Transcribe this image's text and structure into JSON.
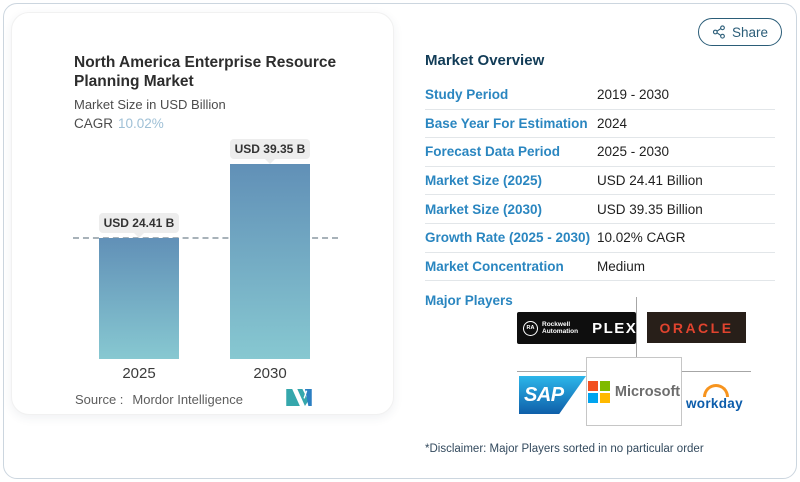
{
  "share_button": {
    "label": "Share",
    "icon": "share-nodes-icon"
  },
  "chart_panel": {
    "title_line1": "North America Enterprise Resource",
    "title_line2": "Planning Market",
    "subtitle": "Market Size in USD Billion",
    "cagr_label": "CAGR",
    "cagr_value": "10.02%",
    "source_label": "Source :",
    "source_name": "Mordor Intelligence"
  },
  "chart_data": {
    "type": "bar",
    "title": "North America Enterprise Resource Planning Market",
    "ylabel": "Market Size in USD Billion",
    "unit": "USD Billion",
    "cagr_pct": "10.02%",
    "categories": [
      "2025",
      "2030"
    ],
    "values": [
      24.41,
      39.35
    ],
    "value_labels": [
      "USD 24.41 B",
      "USD 39.35 B"
    ],
    "ylim": [
      0,
      40
    ],
    "reference_line_value": 24.41,
    "grid": "off",
    "bar_gradient": [
      "#6190b7",
      "#87c8d1"
    ]
  },
  "overview": {
    "heading": "Market Overview",
    "rows": [
      {
        "label": "Study Period",
        "value": "2019 - 2030"
      },
      {
        "label": "Base Year For Estimation",
        "value": "2024"
      },
      {
        "label": "Forecast Data Period",
        "value": "2025 - 2030"
      },
      {
        "label": "Market Size (2025)",
        "value": "USD 24.41 Billion"
      },
      {
        "label": "Market Size (2030)",
        "value": "USD 39.35 Billion"
      },
      {
        "label": "Growth Rate (2025 - 2030)",
        "value": "10.02% CAGR"
      },
      {
        "label": "Market Concentration",
        "value": "Medium"
      }
    ],
    "major_players_label": "Major Players",
    "disclaimer": "*Disclaimer: Major Players sorted in no particular order"
  },
  "players": {
    "rockwell": {
      "badge": "RA",
      "line1": "Rockwell",
      "line2": "Automation",
      "plex": "PLEX"
    },
    "oracle": "ORACLE",
    "sap": "SAP",
    "microsoft": "Microsoft",
    "workday": "workday"
  },
  "colors": {
    "link_blue": "#2a86c0",
    "heading_navy": "#123c57",
    "cagr_light_blue": "#9fc0d6",
    "share_teal": "#2b5d78",
    "bar_top": "#6190b7",
    "bar_bottom": "#87c8d1",
    "oracle_red": "#e0432e",
    "workday_blue": "#0b5cab",
    "workday_orange": "#f7941e",
    "ms_squares": [
      "#f25022",
      "#7fba00",
      "#00a4ef",
      "#ffb900"
    ],
    "mordor_teal": "#35a7ac",
    "mordor_blue": "#2b7fc2"
  }
}
